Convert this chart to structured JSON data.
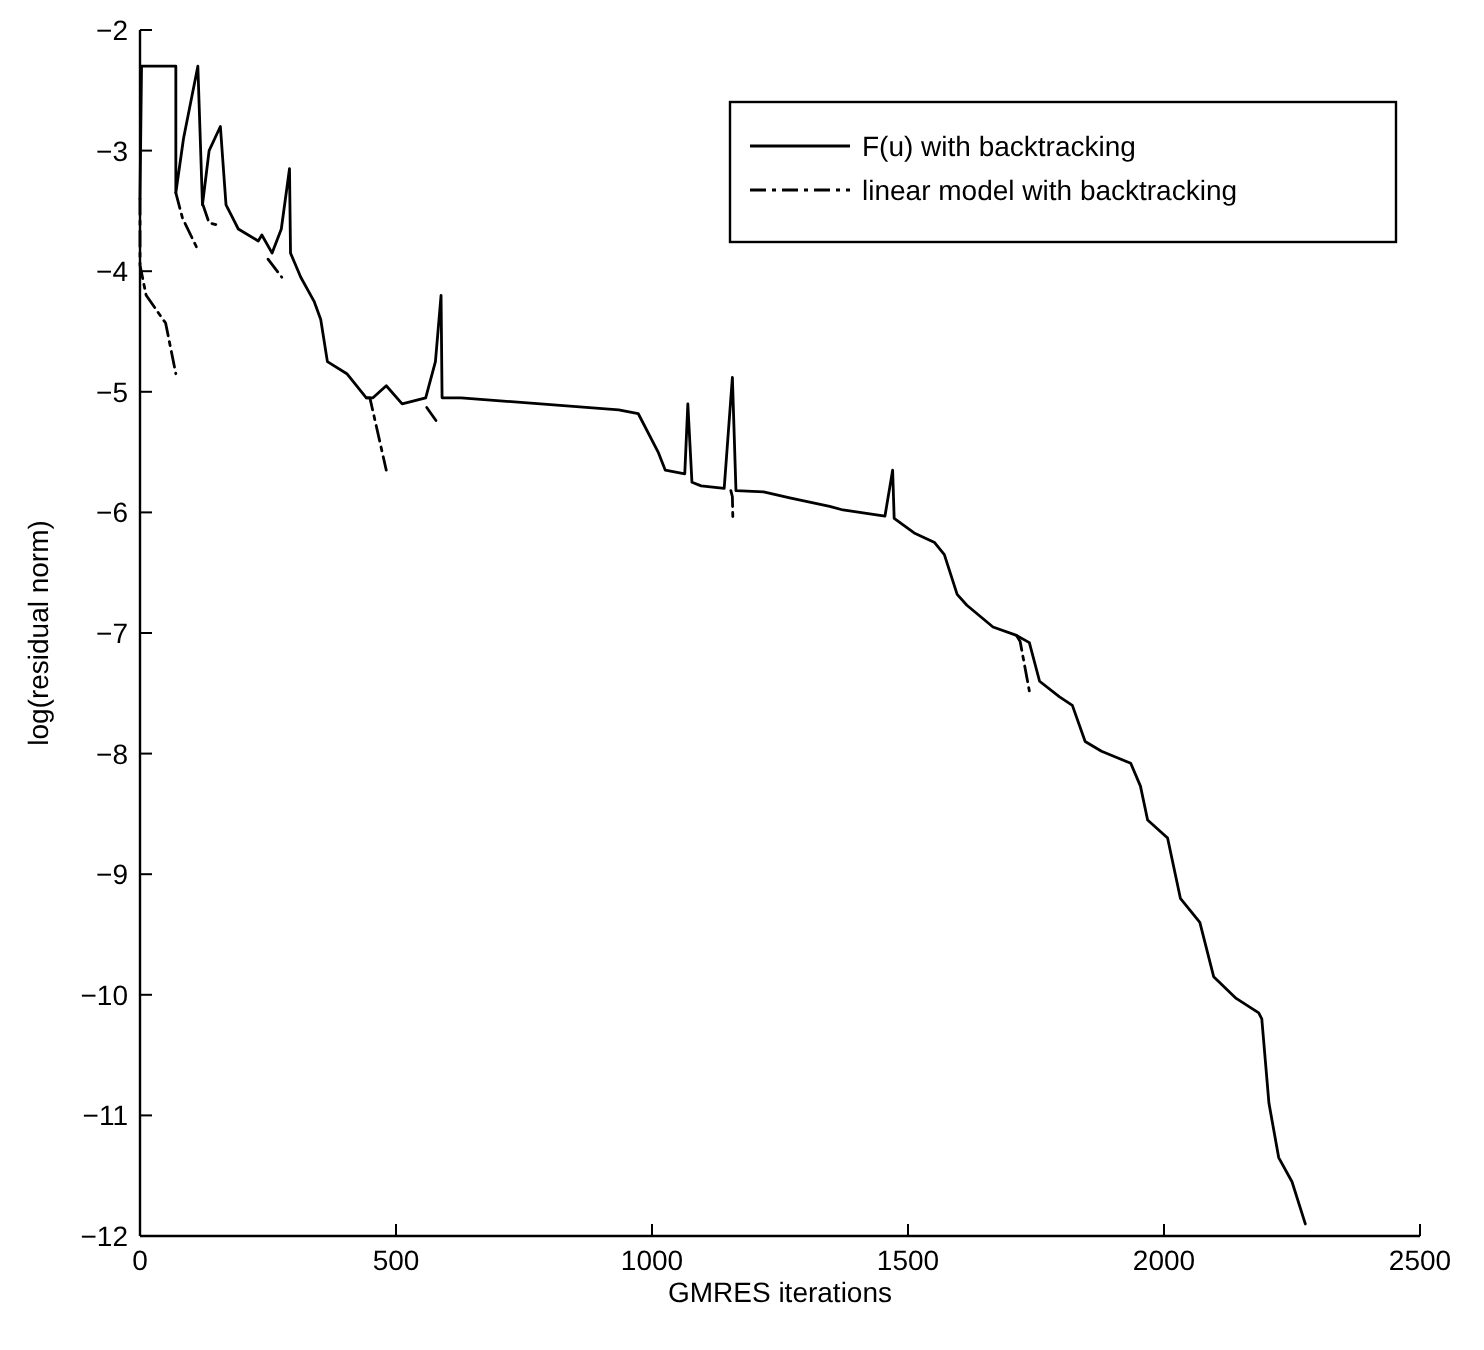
{
  "chart_data": {
    "type": "line",
    "xlabel": "GMRES iterations",
    "ylabel": "log(residual norm)",
    "xlim": [
      0,
      2500
    ],
    "ylim": [
      -12,
      -2
    ],
    "xticks": [
      0,
      500,
      1000,
      1500,
      2000,
      2500
    ],
    "yticks": [
      -12,
      -11,
      -10,
      -9,
      -8,
      -7,
      -6,
      -5,
      -4,
      -3,
      -2
    ],
    "legend": "top right",
    "grid": false,
    "series": [
      {
        "name": "F(u) with backtracking",
        "color": "#000000",
        "line_style": "solid",
        "x": [
          0,
          3,
          70,
          70,
          85,
          113,
          122,
          135,
          157,
          168,
          180,
          192,
          231,
          238,
          258,
          276,
          292,
          294,
          314,
          340,
          353,
          366,
          404,
          442,
          455,
          481,
          512,
          558,
          577,
          588,
          590,
          627,
          935,
          973,
          1012,
          1026,
          1064,
          1070,
          1078,
          1096,
          1141,
          1157,
          1164,
          1218,
          1269,
          1347,
          1373,
          1455,
          1470,
          1473,
          1512,
          1552,
          1571,
          1596,
          1615,
          1666,
          1712,
          1737,
          1757,
          1796,
          1821,
          1846,
          1878,
          1935,
          1954,
          1968,
          2007,
          2032,
          2070,
          2097,
          2141,
          2185,
          2191,
          2205,
          2224,
          2250,
          2276
        ],
        "values": [
          -3.4,
          -2.3,
          -2.3,
          -3.35,
          -2.9,
          -2.3,
          -3.45,
          -3.0,
          -2.8,
          -3.45,
          -3.55,
          -3.65,
          -3.75,
          -3.7,
          -3.85,
          -3.65,
          -3.15,
          -3.85,
          -4.05,
          -4.25,
          -4.4,
          -4.75,
          -4.85,
          -5.05,
          -5.05,
          -4.95,
          -5.1,
          -5.05,
          -4.75,
          -4.2,
          -5.05,
          -5.05,
          -5.15,
          -5.18,
          -5.5,
          -5.65,
          -5.68,
          -5.1,
          -5.75,
          -5.78,
          -5.8,
          -4.88,
          -5.82,
          -5.83,
          -5.88,
          -5.95,
          -5.98,
          -6.03,
          -5.65,
          -6.05,
          -6.17,
          -6.25,
          -6.35,
          -6.68,
          -6.77,
          -6.95,
          -7.02,
          -7.08,
          -7.4,
          -7.53,
          -7.6,
          -7.9,
          -7.98,
          -8.08,
          -8.27,
          -8.55,
          -8.7,
          -9.2,
          -9.4,
          -9.85,
          -10.03,
          -10.15,
          -10.2,
          -10.9,
          -11.35,
          -11.55,
          -11.9
        ]
      },
      {
        "name": "linear model with backtracking",
        "color": "#000000",
        "line_style": "dashdot",
        "x": [
          0,
          0,
          12,
          50,
          70
        ],
        "values": [
          -3.4,
          -3.95,
          -4.2,
          -4.43,
          -4.85
        ]
      },
      {
        "color": "#000000",
        "line_style": "dashdot",
        "x": [
          70,
          83,
          115
        ],
        "values": [
          -3.35,
          -3.56,
          -3.84
        ]
      },
      {
        "color": "#000000",
        "line_style": "dashdot",
        "x": [
          123,
          135,
          155
        ],
        "values": [
          -3.45,
          -3.6,
          -3.62
        ]
      },
      {
        "color": "#000000",
        "line_style": "dashdot",
        "x": [
          250,
          277
        ],
        "values": [
          -3.9,
          -4.05
        ]
      },
      {
        "color": "#000000",
        "line_style": "dashdot",
        "x": [
          442,
          449,
          481
        ],
        "values": [
          -5.05,
          -5.05,
          -5.65
        ]
      },
      {
        "color": "#000000",
        "line_style": "dashdot",
        "x": [
          560,
          580
        ],
        "values": [
          -5.13,
          -5.25
        ]
      },
      {
        "color": "#000000",
        "line_style": "dashdot",
        "x": [
          1154,
          1157,
          1158
        ],
        "values": [
          -5.82,
          -5.87,
          -6.07
        ]
      },
      {
        "color": "#000000",
        "line_style": "dashdot",
        "x": [
          1712,
          1719,
          1737
        ],
        "values": [
          -7.02,
          -7.07,
          -7.48
        ]
      }
    ]
  }
}
